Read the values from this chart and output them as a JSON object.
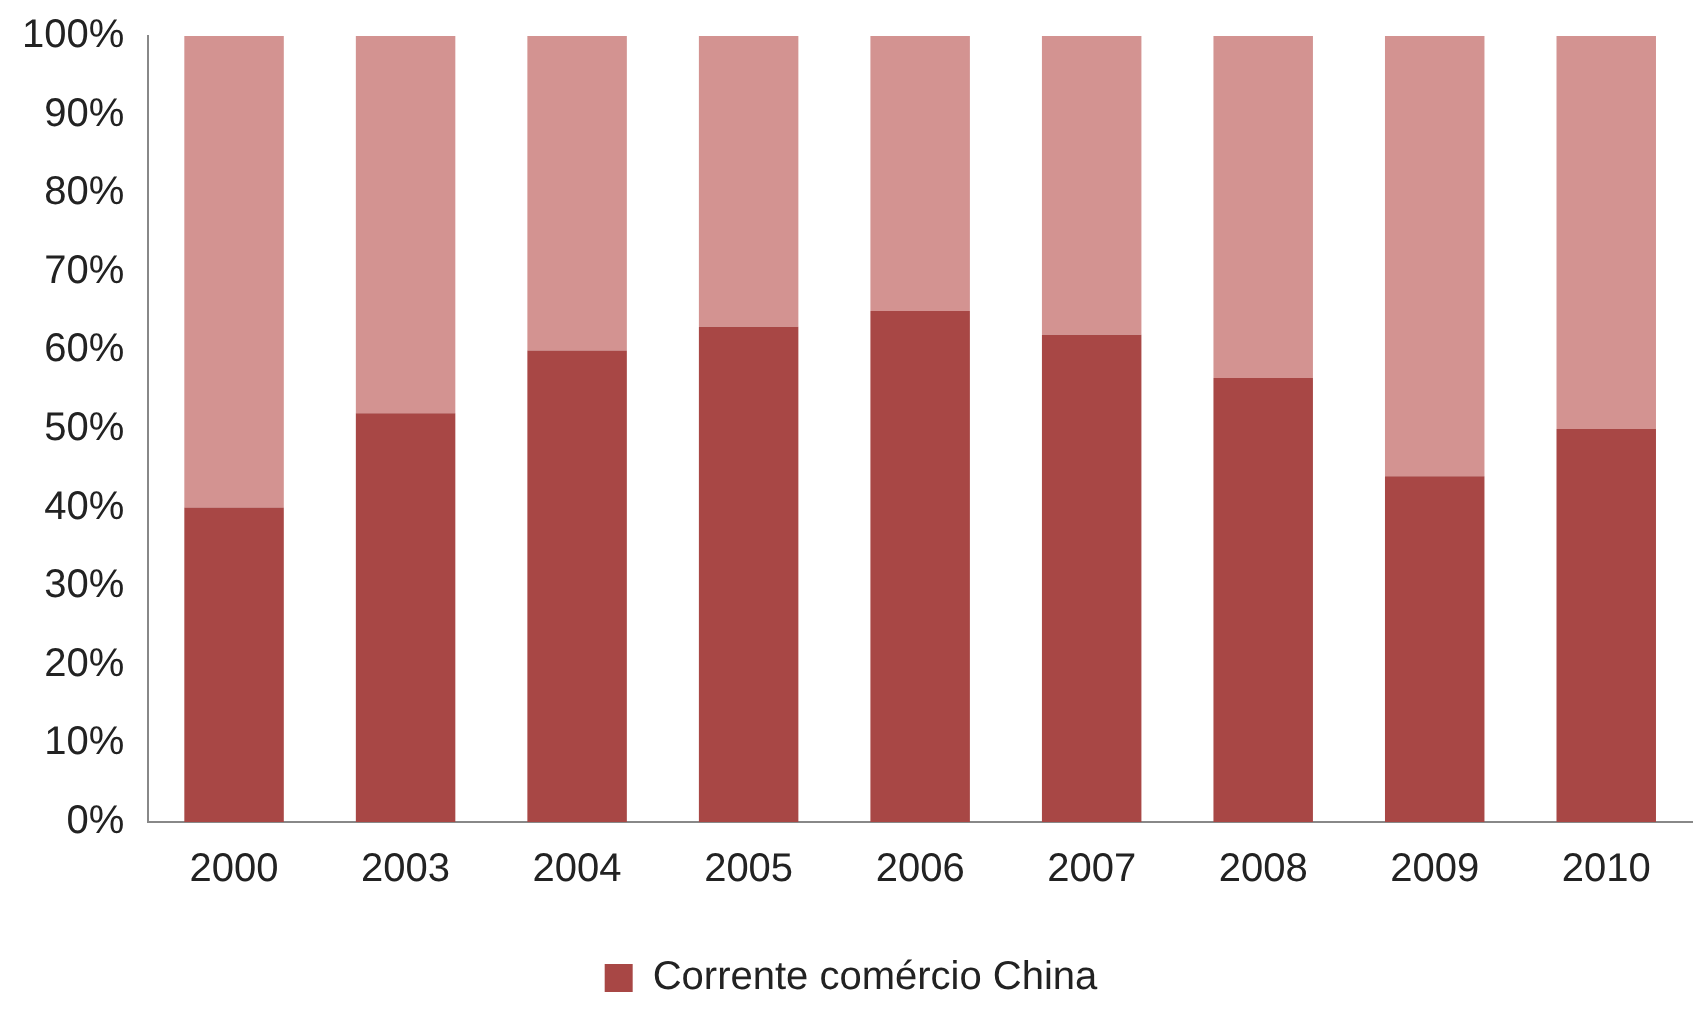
{
  "chart_data": {
    "type": "bar",
    "stacked": true,
    "categories": [
      "2000",
      "2003",
      "2004",
      "2005",
      "2006",
      "2007",
      "2008",
      "2009",
      "2010"
    ],
    "series": [
      {
        "name": "Corrente comércio China",
        "color": "#a84745",
        "values": [
          40,
          52,
          60,
          63,
          65,
          62,
          56.5,
          44,
          50
        ]
      },
      {
        "color": "#d39391",
        "values": [
          60,
          48,
          40,
          37,
          35,
          38,
          43.5,
          56,
          50
        ]
      }
    ],
    "ylim": [
      0,
      100
    ],
    "yticks": [
      {
        "value": 0,
        "label": "0%"
      },
      {
        "value": 10,
        "label": "10%"
      },
      {
        "value": 20,
        "label": "20%"
      },
      {
        "value": 30,
        "label": "30%"
      },
      {
        "value": 40,
        "label": "40%"
      },
      {
        "value": 50,
        "label": "50%"
      },
      {
        "value": 60,
        "label": "60%"
      },
      {
        "value": 70,
        "label": "70%"
      },
      {
        "value": 80,
        "label": "80%"
      },
      {
        "value": 90,
        "label": "90%"
      },
      {
        "value": 100,
        "label": "100%"
      }
    ],
    "grid": false,
    "legend": "bottom"
  }
}
